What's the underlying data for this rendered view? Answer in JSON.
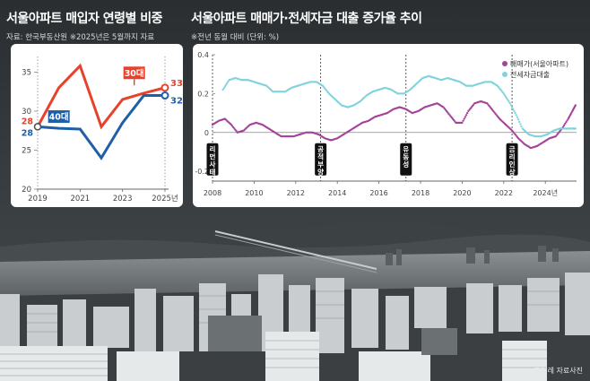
{
  "left_panel": {
    "title": "서울아파트 매입자 연령별 비중",
    "source": "자료: 한국부동산원 ※2025년은 5월까지 자료"
  },
  "right_panel": {
    "title": "서울아파트 매매가·전세자금 대출 증가율 추이",
    "note": "※전년 동월 대비 (단위: %)"
  },
  "photo_credit": "한겨레 자료사진",
  "colors": {
    "red": "#e8412c",
    "blue": "#1f5fa8",
    "purple": "#a44399",
    "cyan": "#7fd3dc"
  },
  "chart_data": [
    {
      "type": "line",
      "x": [
        "2019",
        "2020",
        "2021",
        "2022",
        "2023",
        "2024",
        "2025년"
      ],
      "series": [
        {
          "name": "30대",
          "values": [
            28,
            33,
            35.8,
            28,
            31.5,
            32.3,
            33
          ],
          "color": "#e8412c",
          "start_label": "28",
          "end_label": "33%"
        },
        {
          "name": "40대",
          "values": [
            28,
            27.8,
            27.7,
            24,
            28.5,
            32,
            32
          ],
          "color": "#1f5fa8",
          "start_label": "28",
          "end_label": "32%"
        }
      ],
      "y_ticks": [
        "20",
        "25",
        "30",
        "35"
      ],
      "x_tick_labels": [
        "2019",
        "2021",
        "2023",
        "2025년"
      ],
      "ylim": [
        20,
        37
      ]
    },
    {
      "type": "scatter",
      "x_ticks": [
        "2008",
        "2010",
        "2012",
        "2014",
        "2016",
        "2018",
        "2020",
        "2022",
        "2024년"
      ],
      "y_ticks": [
        "0.4",
        "0.2",
        "0",
        "-0.2"
      ],
      "ylim": [
        -0.25,
        0.4
      ],
      "xlim": [
        2008,
        2025.5
      ],
      "legend": [
        "매매가(서울아파트)",
        "전세자금대출"
      ],
      "series": [
        {
          "name": "매매가(서울아파트)",
          "color": "#a44399",
          "points": [
            [
              2008,
              0.04
            ],
            [
              2008.3,
              0.06
            ],
            [
              2008.6,
              0.07
            ],
            [
              2008.9,
              0.04
            ],
            [
              2009.2,
              0.0
            ],
            [
              2009.5,
              0.01
            ],
            [
              2009.8,
              0.04
            ],
            [
              2010.1,
              0.05
            ],
            [
              2010.4,
              0.04
            ],
            [
              2010.7,
              0.02
            ],
            [
              2011.0,
              0.0
            ],
            [
              2011.3,
              -0.02
            ],
            [
              2011.6,
              -0.02
            ],
            [
              2011.9,
              -0.02
            ],
            [
              2012.2,
              -0.01
            ],
            [
              2012.5,
              0.0
            ],
            [
              2012.8,
              0.0
            ],
            [
              2013.1,
              -0.01
            ],
            [
              2013.4,
              -0.03
            ],
            [
              2013.7,
              -0.04
            ],
            [
              2014.0,
              -0.03
            ],
            [
              2014.3,
              -0.01
            ],
            [
              2014.6,
              0.01
            ],
            [
              2014.9,
              0.03
            ],
            [
              2015.2,
              0.05
            ],
            [
              2015.5,
              0.06
            ],
            [
              2015.8,
              0.08
            ],
            [
              2016.1,
              0.09
            ],
            [
              2016.4,
              0.1
            ],
            [
              2016.7,
              0.12
            ],
            [
              2017.0,
              0.13
            ],
            [
              2017.3,
              0.12
            ],
            [
              2017.6,
              0.1
            ],
            [
              2017.9,
              0.11
            ],
            [
              2018.2,
              0.13
            ],
            [
              2018.5,
              0.14
            ],
            [
              2018.8,
              0.15
            ],
            [
              2019.1,
              0.13
            ],
            [
              2019.4,
              0.09
            ],
            [
              2019.7,
              0.05
            ],
            [
              2020.0,
              0.05
            ],
            [
              2020.3,
              0.11
            ],
            [
              2020.6,
              0.15
            ],
            [
              2020.9,
              0.16
            ],
            [
              2021.2,
              0.15
            ],
            [
              2021.5,
              0.11
            ],
            [
              2021.8,
              0.07
            ],
            [
              2022.1,
              0.04
            ],
            [
              2022.4,
              0.01
            ],
            [
              2022.7,
              -0.03
            ],
            [
              2023.0,
              -0.06
            ],
            [
              2023.3,
              -0.08
            ],
            [
              2023.6,
              -0.07
            ],
            [
              2023.9,
              -0.05
            ],
            [
              2024.2,
              -0.03
            ],
            [
              2024.5,
              -0.02
            ],
            [
              2024.8,
              0.02
            ],
            [
              2025.1,
              0.07
            ],
            [
              2025.3,
              0.11
            ],
            [
              2025.45,
              0.14
            ]
          ]
        },
        {
          "name": "전세자금대출",
          "color": "#7fd3dc",
          "points": [
            [
              2008.5,
              0.22
            ],
            [
              2008.8,
              0.27
            ],
            [
              2009.1,
              0.28
            ],
            [
              2009.4,
              0.27
            ],
            [
              2009.7,
              0.27
            ],
            [
              2010.0,
              0.26
            ],
            [
              2010.3,
              0.25
            ],
            [
              2010.6,
              0.24
            ],
            [
              2010.9,
              0.21
            ],
            [
              2011.2,
              0.21
            ],
            [
              2011.5,
              0.21
            ],
            [
              2011.8,
              0.23
            ],
            [
              2012.1,
              0.24
            ],
            [
              2012.4,
              0.25
            ],
            [
              2012.7,
              0.26
            ],
            [
              2013.0,
              0.26
            ],
            [
              2013.3,
              0.24
            ],
            [
              2013.6,
              0.2
            ],
            [
              2013.9,
              0.17
            ],
            [
              2014.2,
              0.14
            ],
            [
              2014.5,
              0.13
            ],
            [
              2014.8,
              0.14
            ],
            [
              2015.1,
              0.16
            ],
            [
              2015.4,
              0.19
            ],
            [
              2015.7,
              0.21
            ],
            [
              2016.0,
              0.22
            ],
            [
              2016.3,
              0.23
            ],
            [
              2016.6,
              0.22
            ],
            [
              2016.9,
              0.2
            ],
            [
              2017.2,
              0.2
            ],
            [
              2017.5,
              0.22
            ],
            [
              2017.8,
              0.25
            ],
            [
              2018.1,
              0.28
            ],
            [
              2018.4,
              0.29
            ],
            [
              2018.7,
              0.28
            ],
            [
              2019.0,
              0.27
            ],
            [
              2019.3,
              0.28
            ],
            [
              2019.6,
              0.27
            ],
            [
              2019.9,
              0.26
            ],
            [
              2020.2,
              0.24
            ],
            [
              2020.5,
              0.24
            ],
            [
              2020.8,
              0.25
            ],
            [
              2021.1,
              0.26
            ],
            [
              2021.4,
              0.26
            ],
            [
              2021.7,
              0.24
            ],
            [
              2022.0,
              0.2
            ],
            [
              2022.3,
              0.15
            ],
            [
              2022.6,
              0.09
            ],
            [
              2022.9,
              0.02
            ],
            [
              2023.2,
              -0.01
            ],
            [
              2023.5,
              -0.02
            ],
            [
              2023.8,
              -0.02
            ],
            [
              2024.1,
              -0.01
            ],
            [
              2024.4,
              0.01
            ],
            [
              2024.7,
              0.02
            ],
            [
              2025.0,
              0.02
            ],
            [
              2025.3,
              0.02
            ],
            [
              2025.45,
              0.02
            ]
          ]
        }
      ],
      "annotations": [
        {
          "x": 2008.0,
          "label": "리먼사태"
        },
        {
          "x": 2013.2,
          "label": "공적부양"
        },
        {
          "x": 2017.3,
          "label": "유동성"
        },
        {
          "x": 2022.4,
          "label": "금리인상"
        }
      ]
    }
  ]
}
